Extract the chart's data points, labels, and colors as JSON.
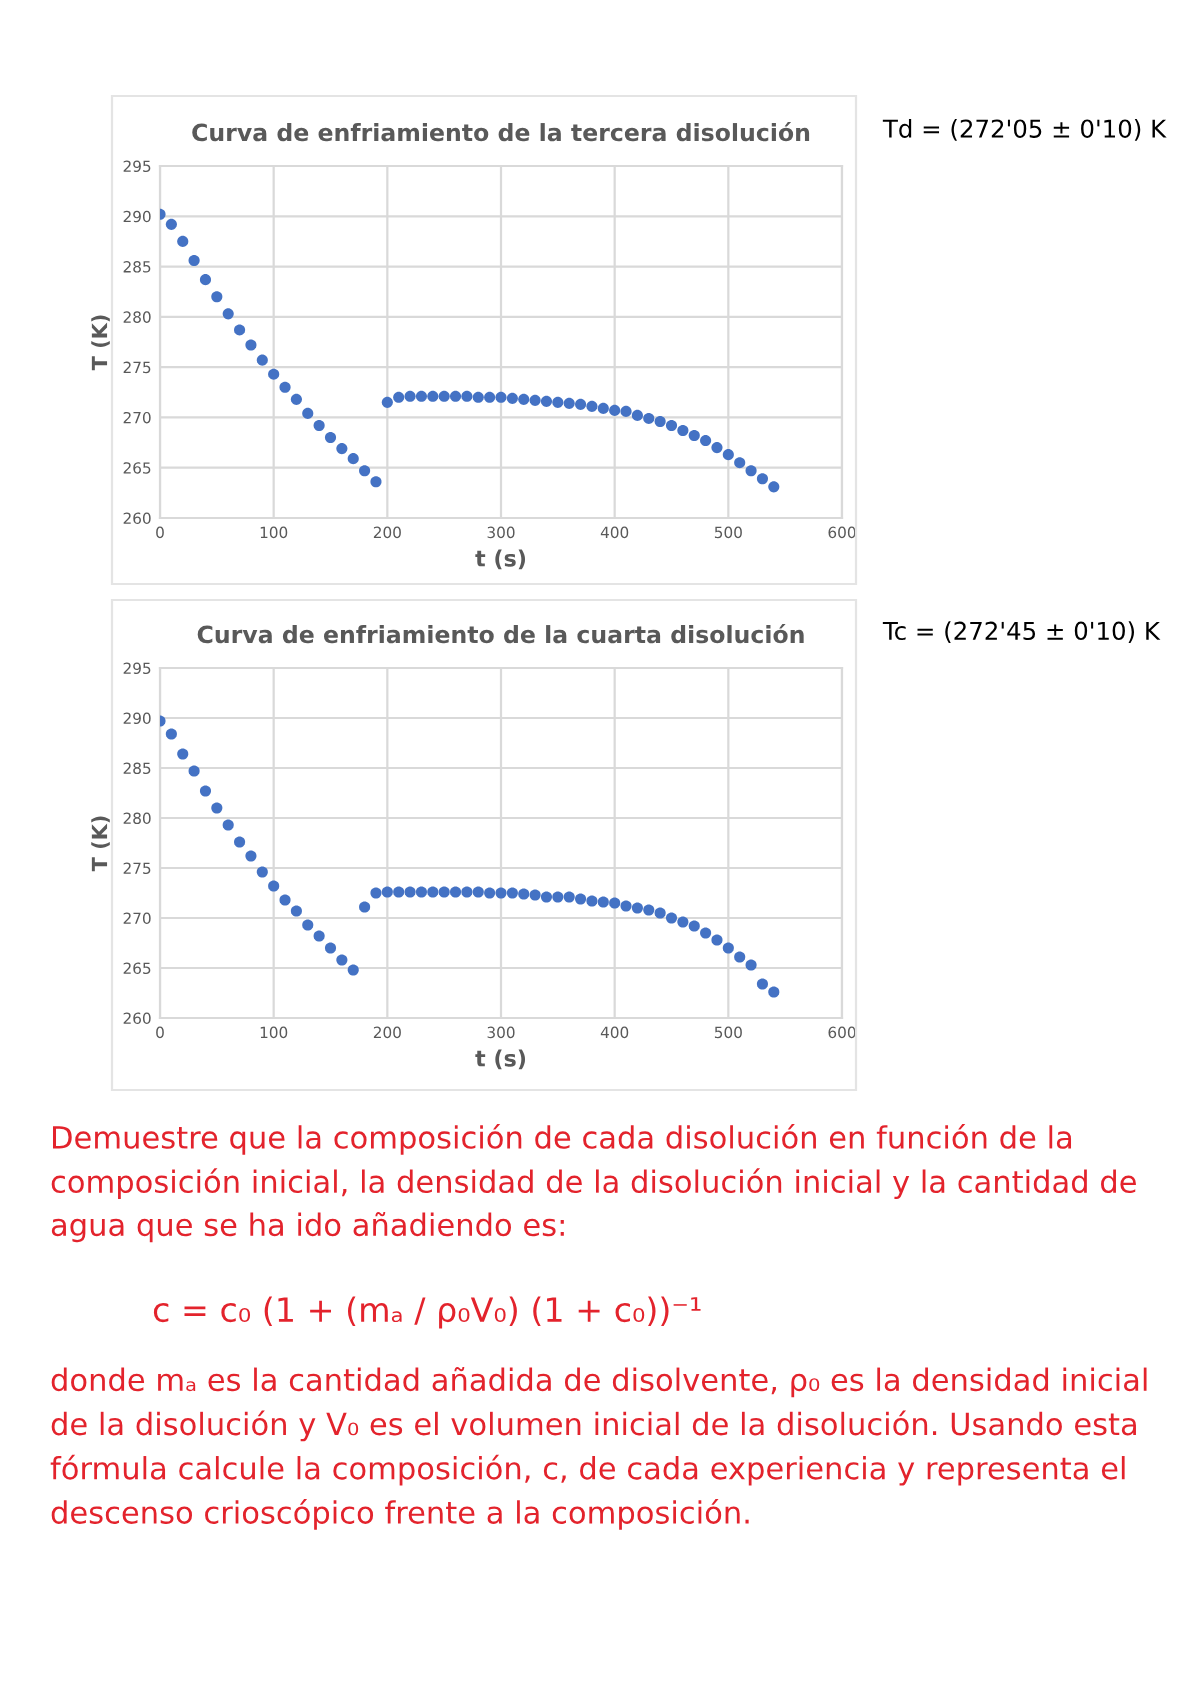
{
  "chart_data": [
    {
      "type": "scatter",
      "title": "Curva de enfriamiento de la tercera disolución",
      "xlabel": "t (s)",
      "ylabel": "T (K)",
      "annotations": [
        "Td = (272'05 ± 0'10) K"
      ],
      "x": [
        0,
        10,
        20,
        30,
        40,
        50,
        60,
        70,
        80,
        90,
        100,
        110,
        120,
        130,
        140,
        150,
        160,
        170,
        180,
        190,
        200,
        210,
        220,
        230,
        240,
        250,
        260,
        270,
        280,
        290,
        300,
        310,
        320,
        330,
        340,
        350,
        360,
        370,
        380,
        390,
        400,
        410,
        420,
        430,
        440,
        450,
        460,
        470,
        480,
        490,
        500,
        510,
        520,
        530,
        540
      ],
      "series": [
        {
          "color": "#4472c4",
          "values": [
            290.2,
            289.2,
            287.5,
            285.6,
            283.7,
            282.0,
            280.3,
            278.7,
            277.2,
            275.7,
            274.3,
            273.0,
            271.8,
            270.4,
            269.2,
            268.0,
            266.9,
            265.9,
            264.7,
            263.6,
            271.5,
            272.0,
            272.1,
            272.1,
            272.1,
            272.1,
            272.1,
            272.1,
            272.0,
            272.0,
            272.0,
            271.9,
            271.8,
            271.7,
            271.6,
            271.5,
            271.4,
            271.3,
            271.1,
            270.9,
            270.7,
            270.6,
            270.2,
            269.9,
            269.6,
            269.2,
            268.7,
            268.2,
            267.7,
            267.0,
            266.3,
            265.5,
            264.7,
            263.9,
            263.1
          ]
        }
      ],
      "xlim": [
        0,
        600
      ],
      "xticks": [
        0,
        100,
        200,
        300,
        400,
        500,
        600
      ],
      "ylim": [
        260,
        295
      ],
      "yticks": [
        260,
        265,
        270,
        275,
        280,
        285,
        290,
        295
      ],
      "grid": true,
      "marker": "circle"
    },
    {
      "type": "scatter",
      "title": "Curva de enfriamiento de la cuarta disolución",
      "xlabel": "t (s)",
      "ylabel": "T (K)",
      "annotations": [
        "Tc = (272'45 ± 0'10) K"
      ],
      "x": [
        0,
        10,
        20,
        30,
        40,
        50,
        60,
        70,
        80,
        90,
        100,
        110,
        120,
        130,
        140,
        150,
        160,
        170,
        180,
        190,
        200,
        210,
        220,
        230,
        240,
        250,
        260,
        270,
        280,
        290,
        300,
        310,
        320,
        330,
        340,
        350,
        360,
        370,
        380,
        390,
        400,
        410,
        420,
        430,
        440,
        450,
        460,
        470,
        480,
        490,
        500,
        510,
        520,
        530,
        540
      ],
      "series": [
        {
          "color": "#4472c4",
          "values": [
            289.7,
            288.4,
            286.4,
            284.7,
            282.7,
            281.0,
            279.3,
            277.6,
            276.2,
            274.6,
            273.2,
            271.8,
            270.7,
            269.3,
            268.2,
            267.0,
            265.8,
            264.8,
            271.1,
            272.5,
            272.6,
            272.6,
            272.6,
            272.6,
            272.6,
            272.6,
            272.6,
            272.6,
            272.6,
            272.5,
            272.5,
            272.5,
            272.4,
            272.3,
            272.1,
            272.1,
            272.1,
            271.9,
            271.7,
            271.6,
            271.5,
            271.2,
            271.0,
            270.8,
            270.5,
            270.0,
            269.6,
            269.2,
            268.5,
            267.8,
            267.0,
            266.1,
            265.3,
            263.4,
            262.6
          ]
        }
      ],
      "xlim": [
        0,
        600
      ],
      "xticks": [
        0,
        100,
        200,
        300,
        400,
        500,
        600
      ],
      "ylim": [
        260,
        295
      ],
      "yticks": [
        260,
        265,
        270,
        275,
        280,
        285,
        290,
        295
      ],
      "grid": true,
      "marker": "circle"
    },
    {
      "type": "other",
      "annotations": [
        "Demuestre que la composición de cada disolución en función de la composición inicial, la densidad de la disolución inicial y la cantidad de agua que se ha ido añadiendo es:",
        "c = c₀ (1 + (mₐ / ρ₀V₀) (1 + c₀))⁻¹",
        "donde mₐ es la cantidad añadida de disolvente, ρ₀ es la densidad inicial de la disolución y V₀ es el volumen inicial de la disolución. Usando esta fórmula calcule la composición, c, de cada experiencia y representa el descenso crioscópico frente a la composición."
      ]
    }
  ]
}
